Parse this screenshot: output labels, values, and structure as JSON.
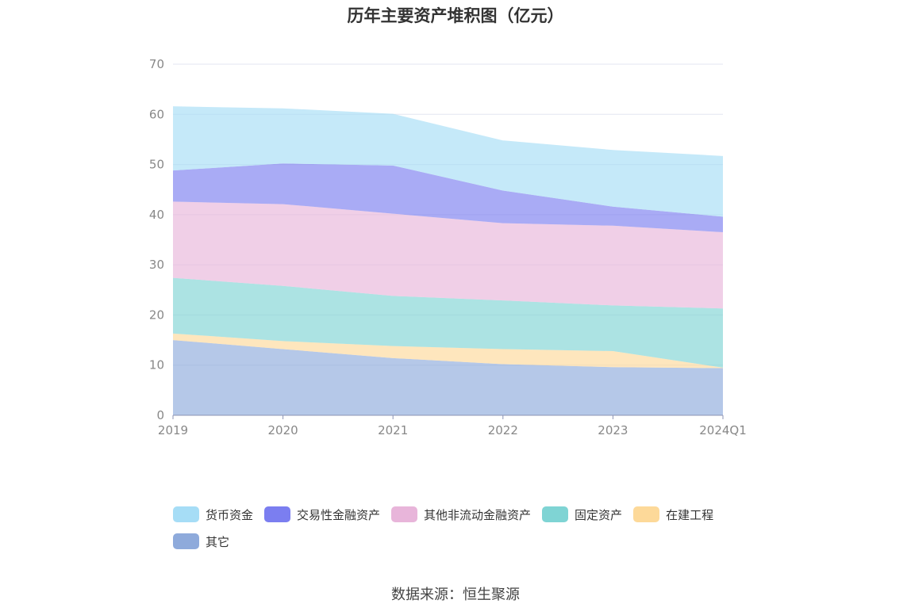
{
  "chart_data": {
    "type": "area",
    "stacked": true,
    "title": "历年主要资产堆积图（亿元）",
    "x": [
      "2019",
      "2020",
      "2021",
      "2022",
      "2023",
      "2024Q1"
    ],
    "yticks": [
      "0",
      "10",
      "20",
      "30",
      "40",
      "50",
      "60",
      "70"
    ],
    "ylim": [
      0,
      70
    ],
    "grid": true,
    "legend_position": "bottom",
    "series": [
      {
        "name": "其它",
        "color": "#8eaadb",
        "values": [
          15.0,
          13.2,
          11.4,
          10.2,
          9.6,
          9.4
        ]
      },
      {
        "name": "在建工程",
        "color": "#fdd999",
        "values": [
          1.3,
          1.6,
          2.4,
          3.0,
          3.2,
          0.1
        ]
      },
      {
        "name": "固定资产",
        "color": "#7fd4d4",
        "values": [
          11.1,
          11.0,
          10.0,
          9.7,
          9.1,
          11.8
        ]
      },
      {
        "name": "其他非流动金融资产",
        "color": "#e8b5da",
        "values": [
          15.2,
          16.3,
          16.4,
          15.4,
          15.9,
          15.2
        ]
      },
      {
        "name": "交易性金融资产",
        "color": "#7b7ef0",
        "values": [
          6.2,
          8.1,
          9.6,
          6.5,
          3.8,
          3.1
        ]
      },
      {
        "name": "货币资金",
        "color": "#a6ddf6",
        "values": [
          12.8,
          11.0,
          10.3,
          10.0,
          11.3,
          12.1
        ]
      }
    ]
  },
  "legend_order": [
    5,
    4,
    3,
    2,
    1,
    0
  ],
  "source": "数据来源：恒生聚源"
}
